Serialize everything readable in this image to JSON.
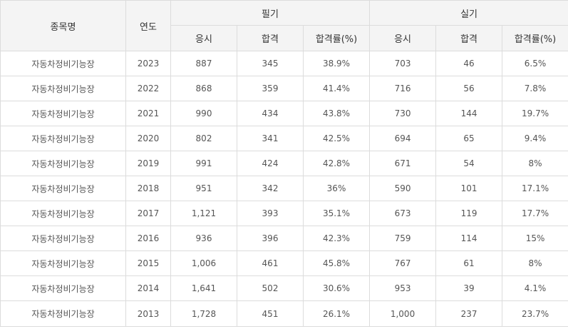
{
  "table": {
    "headers": {
      "item_name": "종목명",
      "year": "연도",
      "written_group": "필기",
      "practical_group": "실기",
      "sub": [
        "응시",
        "합격",
        "합격률(%)",
        "응시",
        "합격",
        "합격률(%)"
      ]
    },
    "rows": [
      [
        "자동차정비기능장",
        "2023",
        "887",
        "345",
        "38.9%",
        "703",
        "46",
        "6.5%"
      ],
      [
        "자동차정비기능장",
        "2022",
        "868",
        "359",
        "41.4%",
        "716",
        "56",
        "7.8%"
      ],
      [
        "자동차정비기능장",
        "2021",
        "990",
        "434",
        "43.8%",
        "730",
        "144",
        "19.7%"
      ],
      [
        "자동차정비기능장",
        "2020",
        "802",
        "341",
        "42.5%",
        "694",
        "65",
        "9.4%"
      ],
      [
        "자동차정비기능장",
        "2019",
        "991",
        "424",
        "42.8%",
        "671",
        "54",
        "8%"
      ],
      [
        "자동차정비기능장",
        "2018",
        "951",
        "342",
        "36%",
        "590",
        "101",
        "17.1%"
      ],
      [
        "자동차정비기능장",
        "2017",
        "1,121",
        "393",
        "35.1%",
        "673",
        "119",
        "17.7%"
      ],
      [
        "자동차정비기능장",
        "2016",
        "936",
        "396",
        "42.3%",
        "759",
        "114",
        "15%"
      ],
      [
        "자동차정비기능장",
        "2015",
        "1,006",
        "461",
        "45.8%",
        "767",
        "61",
        "8%"
      ],
      [
        "자동차정비기능장",
        "2014",
        "1,641",
        "502",
        "30.6%",
        "953",
        "39",
        "4.1%"
      ],
      [
        "자동차정비기능장",
        "2013",
        "1,728",
        "451",
        "26.1%",
        "1,000",
        "237",
        "23.7%"
      ]
    ]
  }
}
